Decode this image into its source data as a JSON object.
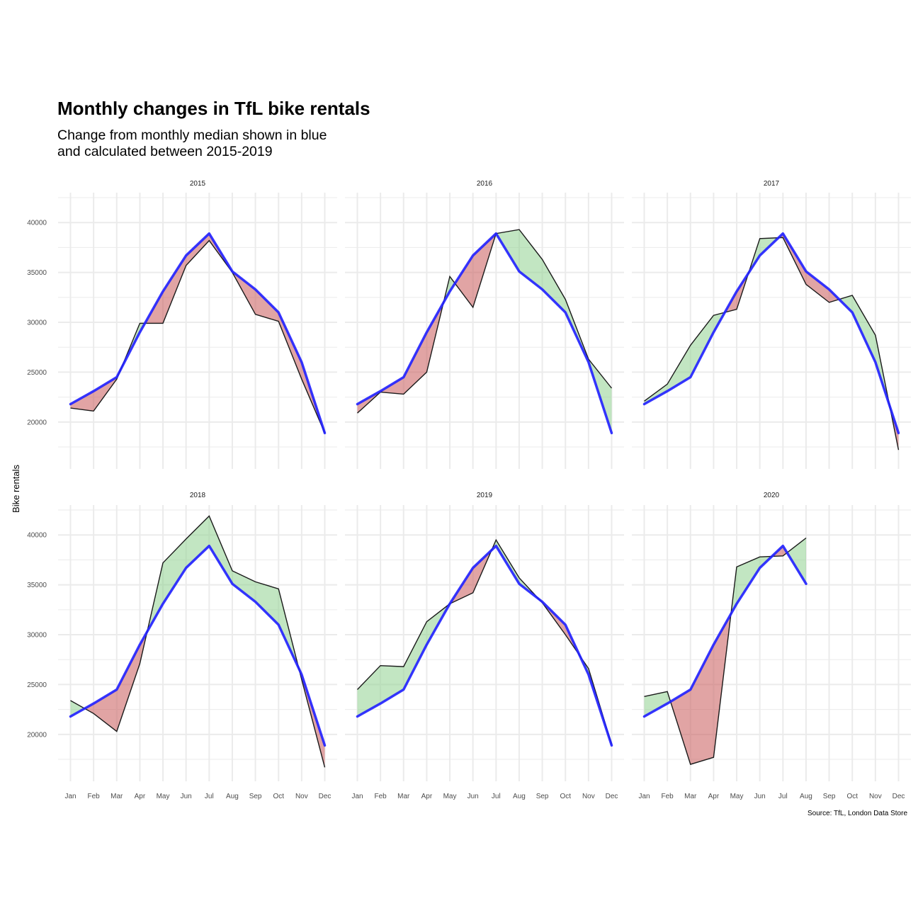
{
  "title": "Monthly changes in TfL bike rentals",
  "subtitle_line1": "Change from monthly median shown in blue",
  "subtitle_line2": "and calculated between 2015-2019",
  "caption": "Source: TfL, London Data Store",
  "colors": {
    "median_line": "#1f1fff",
    "above_fill": "#8fd18f",
    "below_fill": "#c85a5a",
    "actual_line": "#1a1a1a",
    "grid": "#ebebeb"
  },
  "chart_data": {
    "type": "area",
    "facet_by": "year",
    "ylabel": "Bike rentals",
    "xlabel": "",
    "months": [
      "Jan",
      "Feb",
      "Mar",
      "Apr",
      "May",
      "Jun",
      "Jul",
      "Aug",
      "Sep",
      "Oct",
      "Nov",
      "Dec"
    ],
    "y_ticks": [
      20000,
      25000,
      30000,
      35000,
      40000
    ],
    "ylim": [
      15300,
      43000
    ],
    "grid": true,
    "median": [
      21800,
      23100,
      24500,
      29000,
      33100,
      36700,
      38900,
      35100,
      33300,
      31000,
      26000,
      18900
    ],
    "panels": [
      {
        "year": "2015",
        "actual": [
          21400,
          21100,
          24300,
          29900,
          29900,
          35700,
          38200,
          35000,
          30800,
          30100,
          24300,
          18900
        ]
      },
      {
        "year": "2016",
        "actual": [
          20900,
          23000,
          22800,
          25000,
          34600,
          31500,
          38900,
          39300,
          36300,
          32300,
          26300,
          23400
        ]
      },
      {
        "year": "2017",
        "actual": [
          22100,
          23800,
          27700,
          30700,
          31300,
          38400,
          38500,
          33800,
          32000,
          32700,
          28700,
          17200
        ]
      },
      {
        "year": "2018",
        "actual": [
          23400,
          22100,
          20300,
          27100,
          37200,
          39600,
          41900,
          36400,
          35300,
          34600,
          25500,
          16700
        ]
      },
      {
        "year": "2019",
        "actual": [
          24500,
          26900,
          26800,
          31300,
          33100,
          34200,
          39500,
          35700,
          33200,
          30000,
          26600,
          19000
        ]
      },
      {
        "year": "2020",
        "actual": [
          23800,
          24300,
          17000,
          17700,
          36800,
          37800,
          37900,
          39700,
          null,
          null,
          null,
          null
        ]
      }
    ]
  }
}
